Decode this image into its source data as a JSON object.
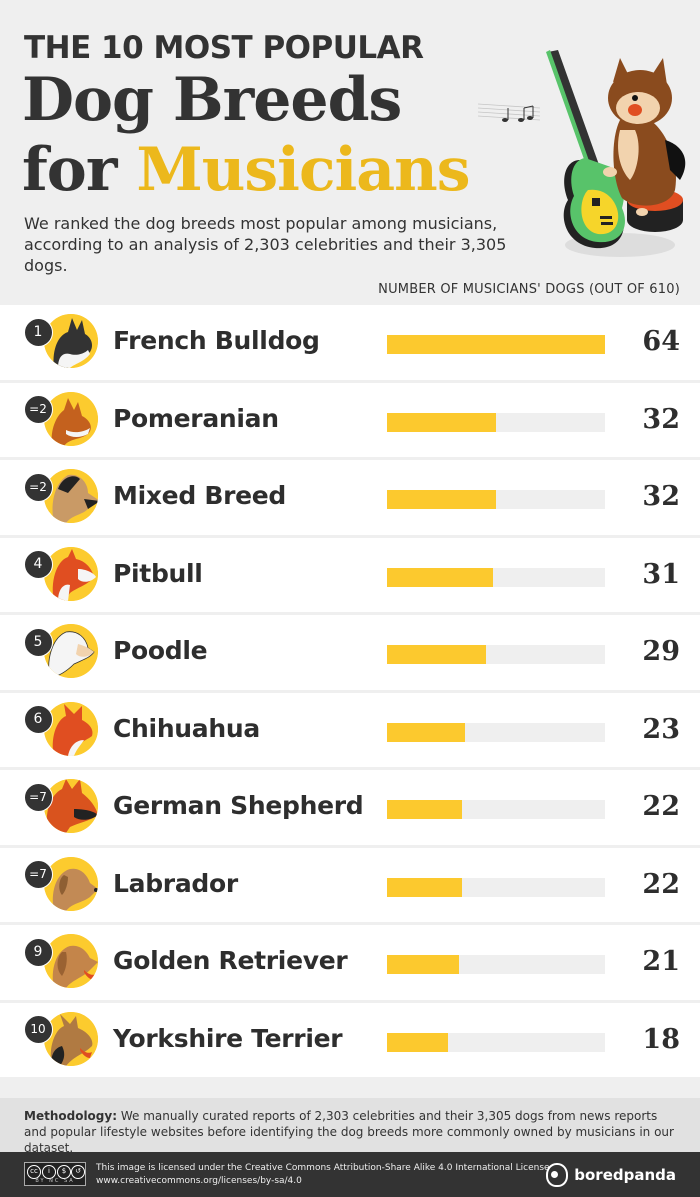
{
  "header": {
    "kicker": "THE 10 MOST POPULAR",
    "title_line1": "Dog Breeds",
    "title_line2_plain": "for ",
    "title_line2_accent": "Musicians",
    "subtitle": "We ranked the dog breeds most popular among musicians, according to an analysis of 2,303 celebrities and their 3,305 dogs.",
    "axis_caption": "NUMBER OF MUSICIANS' DOGS (OUT OF 610)",
    "hero_icon": "pomeranian-playing-guitar-illustration"
  },
  "colors": {
    "accent_yellow": "#fcc92e",
    "title_yellow": "#ecb81c",
    "dark": "#333333",
    "track": "#efefef",
    "background": "#efefef"
  },
  "rows": [
    {
      "rank": "1",
      "breed": "French Bulldog",
      "value": 64,
      "value_label": "64",
      "icon": "french-bulldog-icon"
    },
    {
      "rank": "=2",
      "breed": "Pomeranian",
      "value": 32,
      "value_label": "32",
      "icon": "pomeranian-icon"
    },
    {
      "rank": "=2",
      "breed": "Mixed Breed",
      "value": 32,
      "value_label": "32",
      "icon": "mixed-breed-icon"
    },
    {
      "rank": "4",
      "breed": "Pitbull",
      "value": 31,
      "value_label": "31",
      "icon": "pitbull-icon"
    },
    {
      "rank": "5",
      "breed": "Poodle",
      "value": 29,
      "value_label": "29",
      "icon": "poodle-icon"
    },
    {
      "rank": "6",
      "breed": "Chihuahua",
      "value": 23,
      "value_label": "23",
      "icon": "chihuahua-icon"
    },
    {
      "rank": "=7",
      "breed": "German Shepherd",
      "value": 22,
      "value_label": "22",
      "icon": "german-shepherd-icon"
    },
    {
      "rank": "=7",
      "breed": "Labrador",
      "value": 22,
      "value_label": "22",
      "icon": "labrador-icon"
    },
    {
      "rank": "9",
      "breed": "Golden Retriever",
      "value": 21,
      "value_label": "21",
      "icon": "golden-retriever-icon"
    },
    {
      "rank": "10",
      "breed": "Yorkshire Terrier",
      "value": 18,
      "value_label": "18",
      "icon": "yorkshire-terrier-icon"
    }
  ],
  "methodology": {
    "label": "Methodology:",
    "text": " We manually curated reports of 2,303 celebrities and their 3,305 dogs from news reports and popular lifestyle websites before identifying the dog breeds more commonly owned by musicians in our dataset."
  },
  "footer": {
    "cc_icons": [
      "cc",
      "by",
      "nc",
      "sa"
    ],
    "cc_caption": "BY NC SA",
    "license_line1": "This image is licensed under the Creative Commons Attribution-Share Alike 4.0 International License",
    "license_line2": "www.creativecommons.org/licenses/by-sa/4.0",
    "brand": "boredpanda"
  },
  "chart_data": {
    "type": "bar",
    "orientation": "horizontal",
    "title": "The 10 Most Popular Dog Breeds for Musicians",
    "subtitle": "We ranked the dog breeds most popular among musicians, according to an analysis of 2,303 celebrities and their 3,305 dogs.",
    "xlabel": "Number of musicians' dogs (out of 610)",
    "ylabel": "",
    "categories": [
      "French Bulldog",
      "Pomeranian",
      "Mixed Breed",
      "Pitbull",
      "Poodle",
      "Chihuahua",
      "German Shepherd",
      "Labrador",
      "Golden Retriever",
      "Yorkshire Terrier"
    ],
    "ranks": [
      "1",
      "=2",
      "=2",
      "4",
      "5",
      "6",
      "=7",
      "=7",
      "9",
      "10"
    ],
    "values": [
      64,
      32,
      32,
      31,
      29,
      23,
      22,
      22,
      21,
      18
    ],
    "xlim": [
      0,
      64
    ],
    "grid": false,
    "legend": null,
    "data_labels": true
  }
}
